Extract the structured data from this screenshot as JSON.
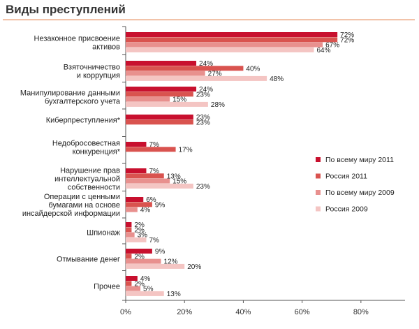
{
  "header": {
    "title": "Виды преступлений"
  },
  "colors": {
    "accent_rule": "#e07030",
    "series": [
      "#c8102e",
      "#d9534f",
      "#e8908e",
      "#f4c5c3"
    ]
  },
  "chart_data": {
    "type": "bar",
    "orientation": "horizontal",
    "categories": [
      [
        "Незаконное присвоение",
        "активов"
      ],
      [
        "Взяточничество",
        "и коррупция"
      ],
      [
        "Манипулирование данными",
        "бухгалтерского учета"
      ],
      [
        "Киберпреступления*"
      ],
      [
        "Недобросовестная",
        "конкуренция*"
      ],
      [
        "Нарушение прав",
        "интеллектуальной",
        "собственности"
      ],
      [
        "Операции с ценными",
        "бумагами на основе",
        "инсайдерской информации"
      ],
      [
        "Шпионаж"
      ],
      [
        "Отмывание денег"
      ],
      [
        "Прочее"
      ]
    ],
    "series": [
      {
        "name": "По всему миру 2011",
        "color": "#c8102e",
        "values": [
          72,
          24,
          24,
          23,
          7,
          7,
          6,
          2,
          9,
          4
        ]
      },
      {
        "name": "Россия 2011",
        "color": "#d9534f",
        "values": [
          72,
          40,
          23,
          23,
          17,
          13,
          9,
          2,
          2,
          2
        ]
      },
      {
        "name": "По всему миру 2009",
        "color": "#e8908e",
        "values": [
          67,
          27,
          15,
          null,
          null,
          15,
          4,
          3,
          12,
          5
        ]
      },
      {
        "name": "Россия 2009",
        "color": "#f4c5c3",
        "values": [
          64,
          48,
          28,
          null,
          null,
          23,
          null,
          7,
          20,
          13
        ]
      }
    ],
    "value_suffix": "%",
    "x_ticks": [
      "0%",
      "20%",
      "40%",
      "60%",
      "80%"
    ],
    "xlim": [
      0,
      95
    ],
    "legend_position": "right",
    "grid": false
  }
}
